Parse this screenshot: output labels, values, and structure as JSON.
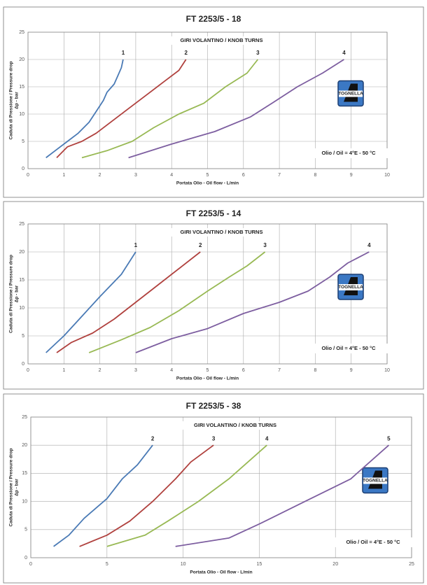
{
  "chart_data": [
    {
      "type": "line",
      "title": "FT 2253/5 - 18",
      "annotation": "GIRI VOLANTINO / KNOB TURNS",
      "y_label": [
        "Caduta di Pressione / Pressure drop",
        "Δp - bar"
      ],
      "x_label": "Portata Olio - Oil flow - L/min",
      "note": "Olio / Oil = 4°E - 50 °C",
      "logo_text": "TOGNELLA",
      "grid": true,
      "xlim": [
        0,
        10
      ],
      "xticks": [
        0,
        1,
        2,
        3,
        4,
        5,
        6,
        7,
        8,
        9,
        10
      ],
      "ylim": [
        0,
        25
      ],
      "yticks": [
        0,
        5,
        10,
        15,
        20,
        25
      ],
      "series": [
        {
          "name": "1",
          "color": "#4a7ab5",
          "x": [
            0.5,
            0.8,
            1.1,
            1.4,
            1.7,
            1.9,
            2.1,
            2.2,
            2.4,
            2.5,
            2.6,
            2.65
          ],
          "values": [
            2,
            3.5,
            5,
            6.5,
            8.5,
            10.5,
            12.5,
            14,
            15.5,
            17,
            18.5,
            20
          ]
        },
        {
          "name": "2",
          "color": "#b0413e",
          "x": [
            0.8,
            1.1,
            1.5,
            1.9,
            2.3,
            2.8,
            3.3,
            3.8,
            4.2,
            4.4
          ],
          "values": [
            2,
            4,
            5,
            6.5,
            8.5,
            11,
            13.5,
            16,
            18,
            20
          ]
        },
        {
          "name": "3",
          "color": "#98b954",
          "x": [
            1.5,
            2.2,
            2.9,
            3.5,
            4.2,
            4.9,
            5.5,
            6.1,
            6.4
          ],
          "values": [
            2,
            3.3,
            5,
            7.5,
            10,
            12,
            15,
            17.5,
            20
          ]
        },
        {
          "name": "4",
          "color": "#7d5ea0",
          "x": [
            2.8,
            4,
            5.2,
            6.2,
            6.8,
            7.5,
            8.2,
            8.8
          ],
          "values": [
            2,
            4.5,
            6.8,
            9.5,
            12,
            15,
            17.5,
            20
          ]
        }
      ]
    },
    {
      "type": "line",
      "title": "FT 2253/5 - 14",
      "annotation": "GIRI VOLANTINO / KNOB TURNS",
      "y_label": [
        "Caduta di Pressione / Pressure drop",
        "Δp - bar"
      ],
      "x_label": "Portata Olio - Oil flow - L/min",
      "note": "Olio / Oil = 4°E - 50 °C",
      "logo_text": "TOGNELLA",
      "grid": true,
      "xlim": [
        0,
        10
      ],
      "xticks": [
        0,
        1,
        2,
        3,
        4,
        5,
        6,
        7,
        8,
        9,
        10
      ],
      "ylim": [
        0,
        25
      ],
      "yticks": [
        0,
        5,
        10,
        15,
        20,
        25
      ],
      "series": [
        {
          "name": "1",
          "color": "#4a7ab5",
          "x": [
            0.5,
            1,
            1.5,
            2,
            2.6,
            3
          ],
          "values": [
            2,
            5,
            8.5,
            12,
            16,
            20
          ]
        },
        {
          "name": "2",
          "color": "#b0413e",
          "x": [
            0.8,
            1.2,
            1.8,
            2.4,
            3,
            3.6,
            4.2,
            4.8
          ],
          "values": [
            2,
            3.8,
            5.5,
            8,
            11,
            14,
            17,
            20
          ]
        },
        {
          "name": "3",
          "color": "#98b954",
          "x": [
            1.7,
            2.6,
            3.4,
            4.2,
            5,
            5.6,
            6.1,
            6.6
          ],
          "values": [
            2,
            4.3,
            6.5,
            9.5,
            13,
            15.5,
            17.5,
            20
          ]
        },
        {
          "name": "4",
          "color": "#7d5ea0",
          "x": [
            3,
            4,
            5,
            6,
            7,
            7.8,
            8.4,
            8.9,
            9.5
          ],
          "values": [
            2,
            4.5,
            6.3,
            9,
            11,
            13,
            15.5,
            18,
            20
          ]
        }
      ]
    },
    {
      "type": "line",
      "title": "FT 2253/5 - 38",
      "annotation": "GIRI VOLANTINO / KNOB TURNS",
      "y_label": [
        "Caduta di Pressione / Pressure drop",
        "Δp - bar"
      ],
      "x_label": "Portata Olio - Oil flow - L/min",
      "note": "Olio / Oil = 4°E - 50 °C",
      "logo_text": "TOGNELLA",
      "grid": true,
      "xlim": [
        0,
        25
      ],
      "xticks": [
        0,
        5,
        10,
        15,
        20,
        25
      ],
      "ylim": [
        0,
        25
      ],
      "yticks": [
        0,
        5,
        10,
        15,
        20,
        25
      ],
      "series": [
        {
          "name": "2",
          "color": "#4a7ab5",
          "x": [
            1.5,
            2.5,
            3.5,
            5,
            6,
            7,
            8
          ],
          "values": [
            2,
            4,
            7,
            10.5,
            14,
            16.5,
            20
          ]
        },
        {
          "name": "3",
          "color": "#b0413e",
          "x": [
            3.2,
            5,
            6.5,
            8,
            9.5,
            10.5,
            12
          ],
          "values": [
            2,
            4,
            6.5,
            10,
            14,
            17,
            20
          ]
        },
        {
          "name": "4",
          "color": "#98b954",
          "x": [
            5,
            7.5,
            9,
            11,
            13,
            15.5
          ],
          "values": [
            2,
            4,
            6.5,
            10,
            14,
            20
          ]
        },
        {
          "name": "5",
          "color": "#7d5ea0",
          "x": [
            9.5,
            13,
            15,
            18,
            21,
            23.5
          ],
          "values": [
            2,
            3.5,
            6,
            10,
            14,
            20
          ]
        }
      ]
    }
  ]
}
